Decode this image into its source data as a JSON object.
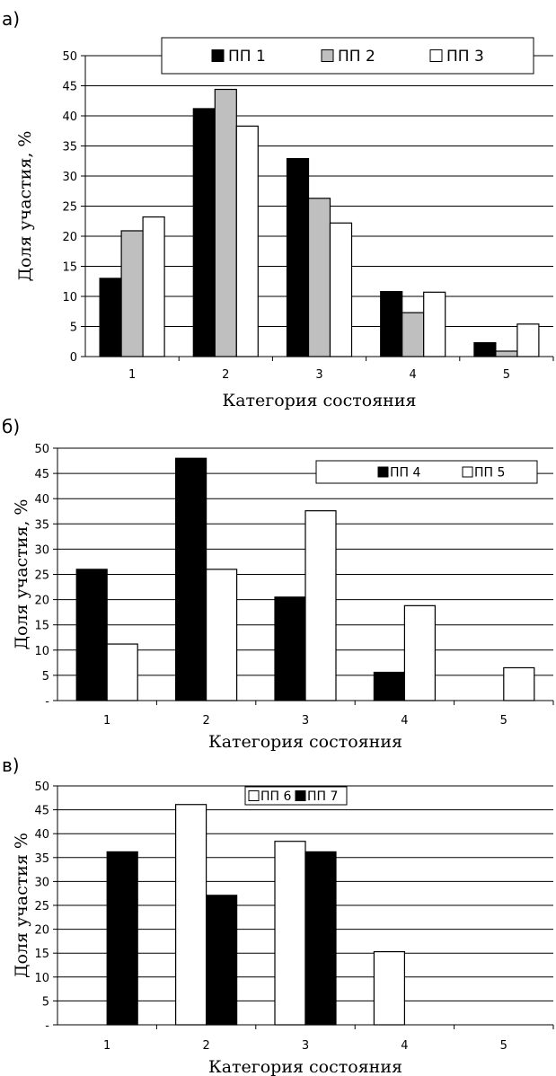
{
  "colors": {
    "black": "#000000",
    "gray": "#bfbfbf",
    "white": "#ffffff"
  },
  "chart_data": [
    {
      "type": "bar",
      "panel_label": "а)",
      "categories": [
        "1",
        "2",
        "3",
        "4",
        "5"
      ],
      "series": [
        {
          "name": "ПП 1",
          "color": "#000000",
          "values": [
            13,
            41.2,
            32.9,
            10.8,
            2.3
          ]
        },
        {
          "name": "ПП 2",
          "color": "#bfbfbf",
          "values": [
            20.9,
            44.4,
            26.3,
            7.3,
            0.9
          ]
        },
        {
          "name": "ПП 3",
          "color": "#ffffff",
          "values": [
            23.2,
            38.3,
            22.2,
            10.7,
            5.4
          ]
        }
      ],
      "yticks": [
        "0",
        "5",
        "10",
        "15",
        "20",
        "25",
        "30",
        "35",
        "40",
        "45",
        "50"
      ],
      "ylim": [
        0,
        50
      ],
      "xlabel": "Категория состояния",
      "ylabel": "Доля участия, %",
      "grid": true,
      "legend": "top"
    },
    {
      "type": "bar",
      "panel_label": "б)",
      "categories": [
        "1",
        "2",
        "3",
        "4",
        "5"
      ],
      "series": [
        {
          "name": "ПП 4",
          "color": "#000000",
          "values": [
            26,
            48,
            20.5,
            5.6,
            0
          ]
        },
        {
          "name": "ПП 5",
          "color": "#ffffff",
          "values": [
            11.2,
            26,
            37.6,
            18.8,
            6.5
          ]
        }
      ],
      "yticks": [
        "-",
        "5",
        "10",
        "15",
        "20",
        "25",
        "30",
        "35",
        "40",
        "45",
        "50"
      ],
      "ylim": [
        0,
        50
      ],
      "xlabel": "Категория состояния",
      "ylabel": "Доля участия, %",
      "grid": true,
      "legend": "top-right"
    },
    {
      "type": "bar",
      "panel_label": "в)",
      "categories": [
        "1",
        "2",
        "3",
        "4",
        "5"
      ],
      "series": [
        {
          "name": "ПП 6",
          "color": "#ffffff",
          "values": [
            0,
            46.1,
            38.4,
            15.3,
            0
          ]
        },
        {
          "name": "ПП 7",
          "color": "#000000",
          "values": [
            36.2,
            27.1,
            36.2,
            0,
            0
          ]
        }
      ],
      "yticks": [
        "-",
        "5",
        "10",
        "15",
        "20",
        "25",
        "30",
        "35",
        "40",
        "45",
        "50"
      ],
      "ylim": [
        0,
        50
      ],
      "xlabel": "Категория состояния",
      "ylabel": "Доля участия %",
      "grid": true,
      "legend": "top"
    }
  ]
}
